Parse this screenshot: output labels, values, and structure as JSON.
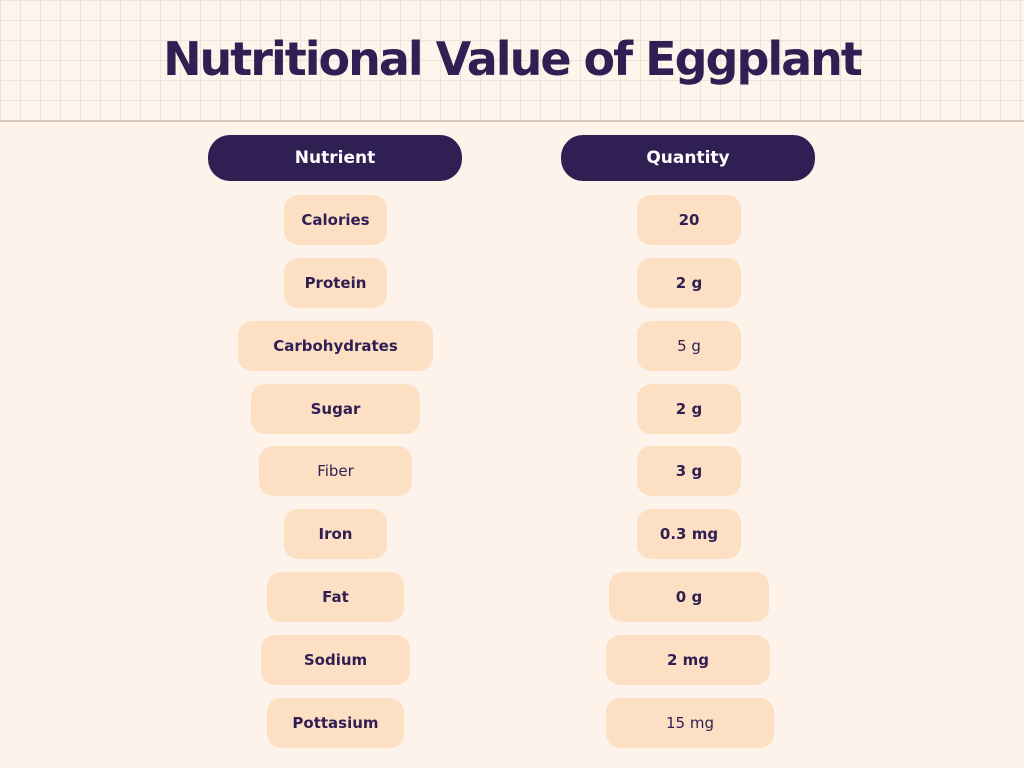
{
  "title": "Nutritional Value of Eggplant",
  "headers": {
    "nutrient": "Nutrient",
    "quantity": "Quantity"
  },
  "rows": [
    {
      "nutrient": "Calories",
      "quantity": "20"
    },
    {
      "nutrient": "Protein",
      "quantity": "2 g"
    },
    {
      "nutrient": "Carbohydrates",
      "quantity": "5 g"
    },
    {
      "nutrient": "Sugar",
      "quantity": "2 g"
    },
    {
      "nutrient": "Fiber",
      "quantity": "3 g"
    },
    {
      "nutrient": "Iron",
      "quantity": "0.3 mg"
    },
    {
      "nutrient": "Fat",
      "quantity": "0 g"
    },
    {
      "nutrient": "Sodium",
      "quantity": "2 mg"
    },
    {
      "nutrient": "Pottasium",
      "quantity": "15 mg"
    }
  ],
  "colors": {
    "background": "#fdf3ea",
    "header_dark": "#2f1f52",
    "pill": "#fde0c4",
    "text": "#2f1f52"
  }
}
